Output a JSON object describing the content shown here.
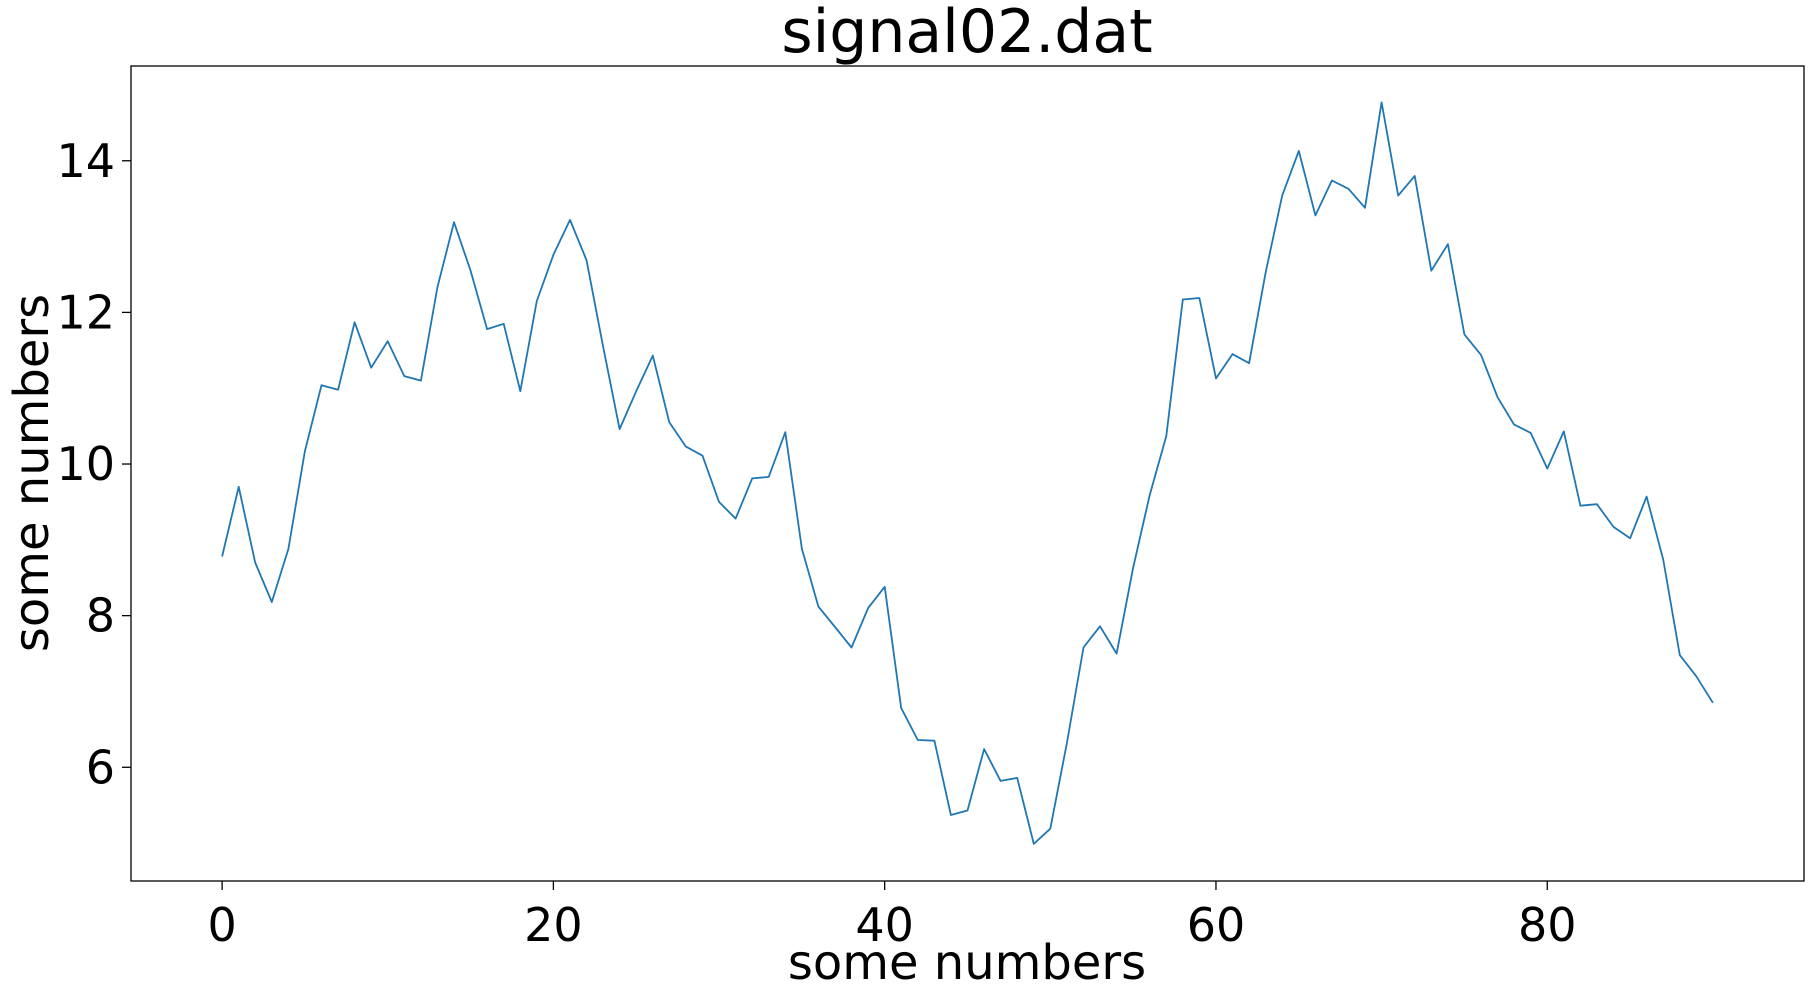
{
  "chart_data": {
    "type": "line",
    "title": "signal02.dat",
    "xlabel": "some numbers",
    "ylabel": "some numbers",
    "xlim": [
      -5.5,
      95.5
    ],
    "ylim": [
      4.5,
      15.25
    ],
    "xticks": [
      0,
      20,
      40,
      60,
      80
    ],
    "yticks": [
      6,
      8,
      10,
      12,
      14
    ],
    "grid": false,
    "line_color": "#1f77b4",
    "series": [
      {
        "x": [
          0,
          1,
          2,
          3,
          4,
          5,
          6,
          7,
          8,
          9,
          10,
          11,
          12,
          13,
          14,
          15,
          16,
          17,
          18,
          19,
          20,
          21,
          22,
          23,
          24,
          25,
          26,
          27,
          28,
          29,
          30,
          31,
          32,
          33,
          34,
          35,
          36,
          37,
          38,
          39,
          40,
          41,
          42,
          43,
          44,
          45,
          46,
          47,
          48,
          49,
          50,
          51,
          52,
          53,
          54,
          55,
          56,
          57,
          58,
          59,
          60,
          61,
          62,
          63,
          64,
          65,
          66,
          67,
          68,
          69,
          70,
          71,
          72,
          73,
          74,
          75,
          76,
          77,
          78,
          79,
          80,
          81,
          82,
          83,
          84,
          85,
          86,
          87,
          88,
          89,
          90
        ],
        "y": [
          8.78,
          9.7,
          8.7,
          8.18,
          8.88,
          10.17,
          11.04,
          10.98,
          11.87,
          11.27,
          11.62,
          11.16,
          11.1,
          12.33,
          13.19,
          12.55,
          11.78,
          11.85,
          10.96,
          12.15,
          12.76,
          13.22,
          12.69,
          11.55,
          10.46,
          10.96,
          11.43,
          10.55,
          10.23,
          10.11,
          9.5,
          9.28,
          9.81,
          9.83,
          10.42,
          8.88,
          8.12,
          7.85,
          7.58,
          8.1,
          8.38,
          6.78,
          6.36,
          6.35,
          5.37,
          5.43,
          6.24,
          5.82,
          5.86,
          4.99,
          5.19,
          6.32,
          7.58,
          7.86,
          7.5,
          8.63,
          9.59,
          10.37,
          12.17,
          12.19,
          11.13,
          11.45,
          11.33,
          12.53,
          13.54,
          14.13,
          13.28,
          13.74,
          13.63,
          13.38,
          14.77,
          13.54,
          13.8,
          12.55,
          12.9,
          11.71,
          11.44,
          10.88,
          10.52,
          10.41,
          9.94,
          10.43,
          9.45,
          9.47,
          9.17,
          9.02,
          9.57,
          8.74,
          7.48,
          7.2,
          6.85
        ]
      }
    ]
  }
}
